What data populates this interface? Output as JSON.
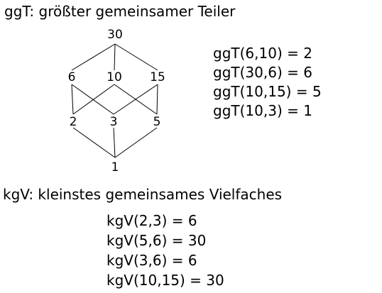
{
  "ggt": {
    "heading": "ggT: größter gemeinsamer Teiler",
    "examples": [
      "ggT(6,10) = 2",
      "ggT(30,6) = 6",
      "ggT(10,15) = 5",
      "ggT(10,3) = 1"
    ]
  },
  "lattice": {
    "nodes": [
      "30",
      "6",
      "10",
      "15",
      "2",
      "3",
      "5",
      "1"
    ],
    "edges": [
      [
        "30",
        "6"
      ],
      [
        "30",
        "10"
      ],
      [
        "30",
        "15"
      ],
      [
        "6",
        "2"
      ],
      [
        "6",
        "3"
      ],
      [
        "10",
        "2"
      ],
      [
        "10",
        "5"
      ],
      [
        "15",
        "3"
      ],
      [
        "15",
        "5"
      ],
      [
        "2",
        "1"
      ],
      [
        "3",
        "1"
      ],
      [
        "5",
        "1"
      ]
    ]
  },
  "kgv": {
    "heading": "kgV: kleinstes gemeinsames Vielfaches",
    "examples": [
      "kgV(2,3) = 6",
      "kgV(5,6) = 30",
      "kgV(3,6) = 6",
      "kgV(10,15) = 30"
    ]
  }
}
